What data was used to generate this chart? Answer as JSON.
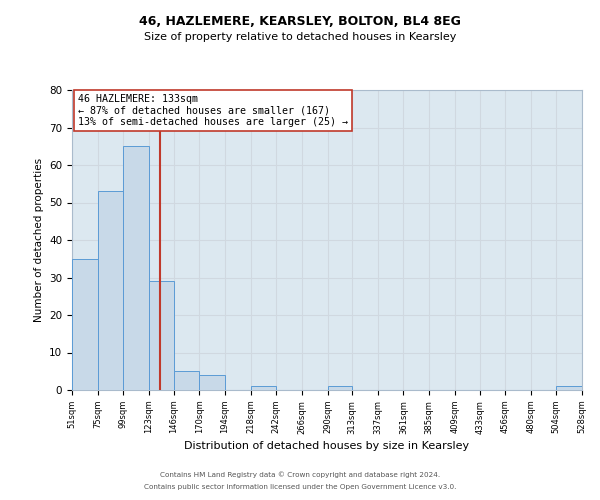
{
  "title": "46, HAZLEMERE, KEARSLEY, BOLTON, BL4 8EG",
  "subtitle": "Size of property relative to detached houses in Kearsley",
  "xlabel": "Distribution of detached houses by size in Kearsley",
  "ylabel": "Number of detached properties",
  "bin_edges": [
    51,
    75,
    99,
    123,
    146,
    170,
    194,
    218,
    242,
    266,
    290,
    313,
    337,
    361,
    385,
    409,
    433,
    456,
    480,
    504,
    528
  ],
  "bar_heights": [
    35,
    53,
    65,
    29,
    5,
    4,
    0,
    1,
    0,
    0,
    1,
    0,
    0,
    0,
    0,
    0,
    0,
    0,
    0,
    1
  ],
  "bar_color": "#c8d9e8",
  "bar_edge_color": "#5b9bd5",
  "vline_x": 133,
  "vline_color": "#c0392b",
  "annotation_line1": "46 HAZLEMERE: 133sqm",
  "annotation_line2": "← 87% of detached houses are smaller (167)",
  "annotation_line3": "13% of semi-detached houses are larger (25) →",
  "annotation_box_edge_color": "#c0392b",
  "annotation_box_face_color": "white",
  "ylim": [
    0,
    80
  ],
  "yticks": [
    0,
    10,
    20,
    30,
    40,
    50,
    60,
    70,
    80
  ],
  "tick_labels": [
    "51sqm",
    "75sqm",
    "99sqm",
    "123sqm",
    "146sqm",
    "170sqm",
    "194sqm",
    "218sqm",
    "242sqm",
    "266sqm",
    "290sqm",
    "313sqm",
    "337sqm",
    "361sqm",
    "385sqm",
    "409sqm",
    "433sqm",
    "456sqm",
    "480sqm",
    "504sqm",
    "528sqm"
  ],
  "grid_color": "#d0d8e0",
  "background_color": "#dce8f0",
  "footer_line1": "Contains HM Land Registry data © Crown copyright and database right 2024.",
  "footer_line2": "Contains public sector information licensed under the Open Government Licence v3.0."
}
